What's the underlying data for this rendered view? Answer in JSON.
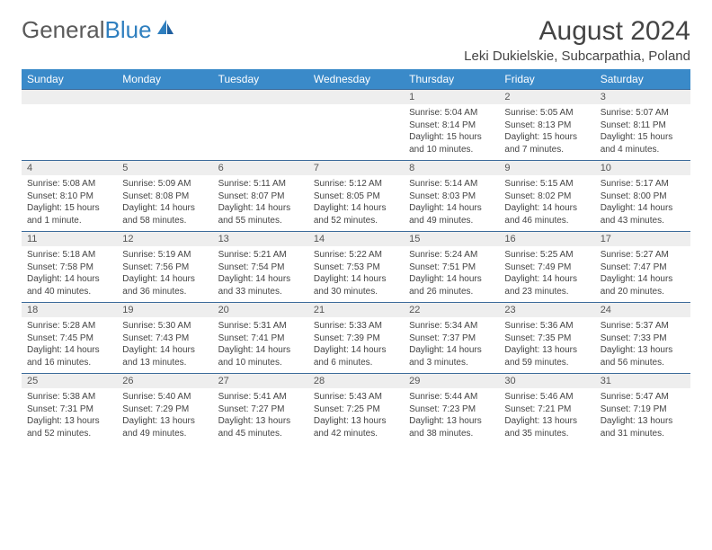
{
  "brand": {
    "part1": "General",
    "part2": "Blue"
  },
  "title": "August 2024",
  "location": "Leki Dukielskie, Subcarpathia, Poland",
  "colors": {
    "header_bg": "#3a8ac9",
    "header_text": "#ffffff",
    "row_border": "#3a6a9a",
    "daynum_bg": "#eeeeee",
    "text": "#444444",
    "brand_gray": "#5a5a5a",
    "brand_blue": "#2f7fbf",
    "page_bg": "#ffffff"
  },
  "weekdays": [
    "Sunday",
    "Monday",
    "Tuesday",
    "Wednesday",
    "Thursday",
    "Friday",
    "Saturday"
  ],
  "weeks": [
    [
      null,
      null,
      null,
      null,
      {
        "n": "1",
        "sr": "Sunrise: 5:04 AM",
        "ss": "Sunset: 8:14 PM",
        "dl": "Daylight: 15 hours and 10 minutes."
      },
      {
        "n": "2",
        "sr": "Sunrise: 5:05 AM",
        "ss": "Sunset: 8:13 PM",
        "dl": "Daylight: 15 hours and 7 minutes."
      },
      {
        "n": "3",
        "sr": "Sunrise: 5:07 AM",
        "ss": "Sunset: 8:11 PM",
        "dl": "Daylight: 15 hours and 4 minutes."
      }
    ],
    [
      {
        "n": "4",
        "sr": "Sunrise: 5:08 AM",
        "ss": "Sunset: 8:10 PM",
        "dl": "Daylight: 15 hours and 1 minute."
      },
      {
        "n": "5",
        "sr": "Sunrise: 5:09 AM",
        "ss": "Sunset: 8:08 PM",
        "dl": "Daylight: 14 hours and 58 minutes."
      },
      {
        "n": "6",
        "sr": "Sunrise: 5:11 AM",
        "ss": "Sunset: 8:07 PM",
        "dl": "Daylight: 14 hours and 55 minutes."
      },
      {
        "n": "7",
        "sr": "Sunrise: 5:12 AM",
        "ss": "Sunset: 8:05 PM",
        "dl": "Daylight: 14 hours and 52 minutes."
      },
      {
        "n": "8",
        "sr": "Sunrise: 5:14 AM",
        "ss": "Sunset: 8:03 PM",
        "dl": "Daylight: 14 hours and 49 minutes."
      },
      {
        "n": "9",
        "sr": "Sunrise: 5:15 AM",
        "ss": "Sunset: 8:02 PM",
        "dl": "Daylight: 14 hours and 46 minutes."
      },
      {
        "n": "10",
        "sr": "Sunrise: 5:17 AM",
        "ss": "Sunset: 8:00 PM",
        "dl": "Daylight: 14 hours and 43 minutes."
      }
    ],
    [
      {
        "n": "11",
        "sr": "Sunrise: 5:18 AM",
        "ss": "Sunset: 7:58 PM",
        "dl": "Daylight: 14 hours and 40 minutes."
      },
      {
        "n": "12",
        "sr": "Sunrise: 5:19 AM",
        "ss": "Sunset: 7:56 PM",
        "dl": "Daylight: 14 hours and 36 minutes."
      },
      {
        "n": "13",
        "sr": "Sunrise: 5:21 AM",
        "ss": "Sunset: 7:54 PM",
        "dl": "Daylight: 14 hours and 33 minutes."
      },
      {
        "n": "14",
        "sr": "Sunrise: 5:22 AM",
        "ss": "Sunset: 7:53 PM",
        "dl": "Daylight: 14 hours and 30 minutes."
      },
      {
        "n": "15",
        "sr": "Sunrise: 5:24 AM",
        "ss": "Sunset: 7:51 PM",
        "dl": "Daylight: 14 hours and 26 minutes."
      },
      {
        "n": "16",
        "sr": "Sunrise: 5:25 AM",
        "ss": "Sunset: 7:49 PM",
        "dl": "Daylight: 14 hours and 23 minutes."
      },
      {
        "n": "17",
        "sr": "Sunrise: 5:27 AM",
        "ss": "Sunset: 7:47 PM",
        "dl": "Daylight: 14 hours and 20 minutes."
      }
    ],
    [
      {
        "n": "18",
        "sr": "Sunrise: 5:28 AM",
        "ss": "Sunset: 7:45 PM",
        "dl": "Daylight: 14 hours and 16 minutes."
      },
      {
        "n": "19",
        "sr": "Sunrise: 5:30 AM",
        "ss": "Sunset: 7:43 PM",
        "dl": "Daylight: 14 hours and 13 minutes."
      },
      {
        "n": "20",
        "sr": "Sunrise: 5:31 AM",
        "ss": "Sunset: 7:41 PM",
        "dl": "Daylight: 14 hours and 10 minutes."
      },
      {
        "n": "21",
        "sr": "Sunrise: 5:33 AM",
        "ss": "Sunset: 7:39 PM",
        "dl": "Daylight: 14 hours and 6 minutes."
      },
      {
        "n": "22",
        "sr": "Sunrise: 5:34 AM",
        "ss": "Sunset: 7:37 PM",
        "dl": "Daylight: 14 hours and 3 minutes."
      },
      {
        "n": "23",
        "sr": "Sunrise: 5:36 AM",
        "ss": "Sunset: 7:35 PM",
        "dl": "Daylight: 13 hours and 59 minutes."
      },
      {
        "n": "24",
        "sr": "Sunrise: 5:37 AM",
        "ss": "Sunset: 7:33 PM",
        "dl": "Daylight: 13 hours and 56 minutes."
      }
    ],
    [
      {
        "n": "25",
        "sr": "Sunrise: 5:38 AM",
        "ss": "Sunset: 7:31 PM",
        "dl": "Daylight: 13 hours and 52 minutes."
      },
      {
        "n": "26",
        "sr": "Sunrise: 5:40 AM",
        "ss": "Sunset: 7:29 PM",
        "dl": "Daylight: 13 hours and 49 minutes."
      },
      {
        "n": "27",
        "sr": "Sunrise: 5:41 AM",
        "ss": "Sunset: 7:27 PM",
        "dl": "Daylight: 13 hours and 45 minutes."
      },
      {
        "n": "28",
        "sr": "Sunrise: 5:43 AM",
        "ss": "Sunset: 7:25 PM",
        "dl": "Daylight: 13 hours and 42 minutes."
      },
      {
        "n": "29",
        "sr": "Sunrise: 5:44 AM",
        "ss": "Sunset: 7:23 PM",
        "dl": "Daylight: 13 hours and 38 minutes."
      },
      {
        "n": "30",
        "sr": "Sunrise: 5:46 AM",
        "ss": "Sunset: 7:21 PM",
        "dl": "Daylight: 13 hours and 35 minutes."
      },
      {
        "n": "31",
        "sr": "Sunrise: 5:47 AM",
        "ss": "Sunset: 7:19 PM",
        "dl": "Daylight: 13 hours and 31 minutes."
      }
    ]
  ]
}
